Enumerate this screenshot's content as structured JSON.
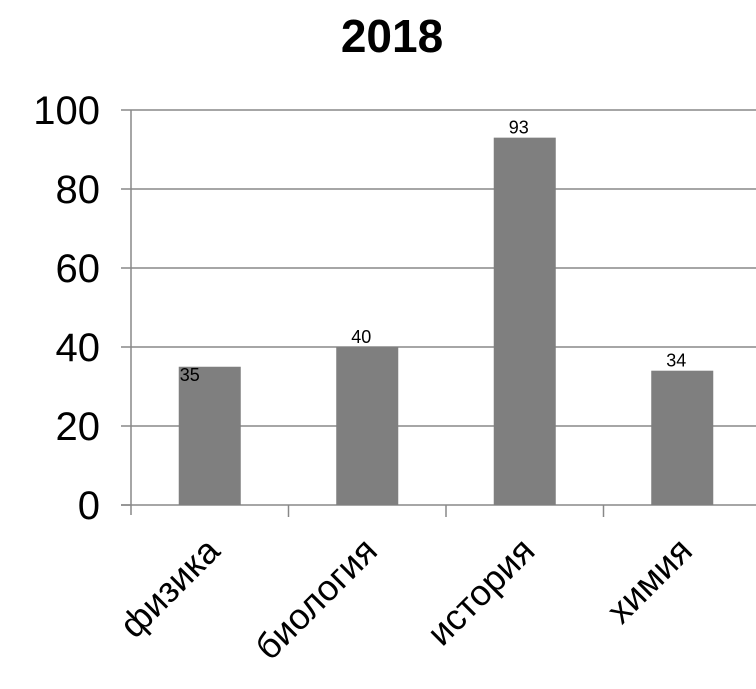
{
  "chart_data": {
    "type": "bar",
    "title": "2018",
    "categories": [
      "физика",
      "биология",
      "история",
      "химия"
    ],
    "values": [
      35,
      40,
      93,
      34
    ],
    "data_labels": [
      "35",
      "40",
      "93",
      "34"
    ],
    "xlabel": "",
    "ylabel": "",
    "ylim": [
      0,
      100
    ],
    "yticks": [
      "0",
      "20",
      "40",
      "60",
      "80",
      "100"
    ],
    "grid": true,
    "legend": "none",
    "bar_color": "#7f7f7f",
    "grid_color": "#888888"
  }
}
